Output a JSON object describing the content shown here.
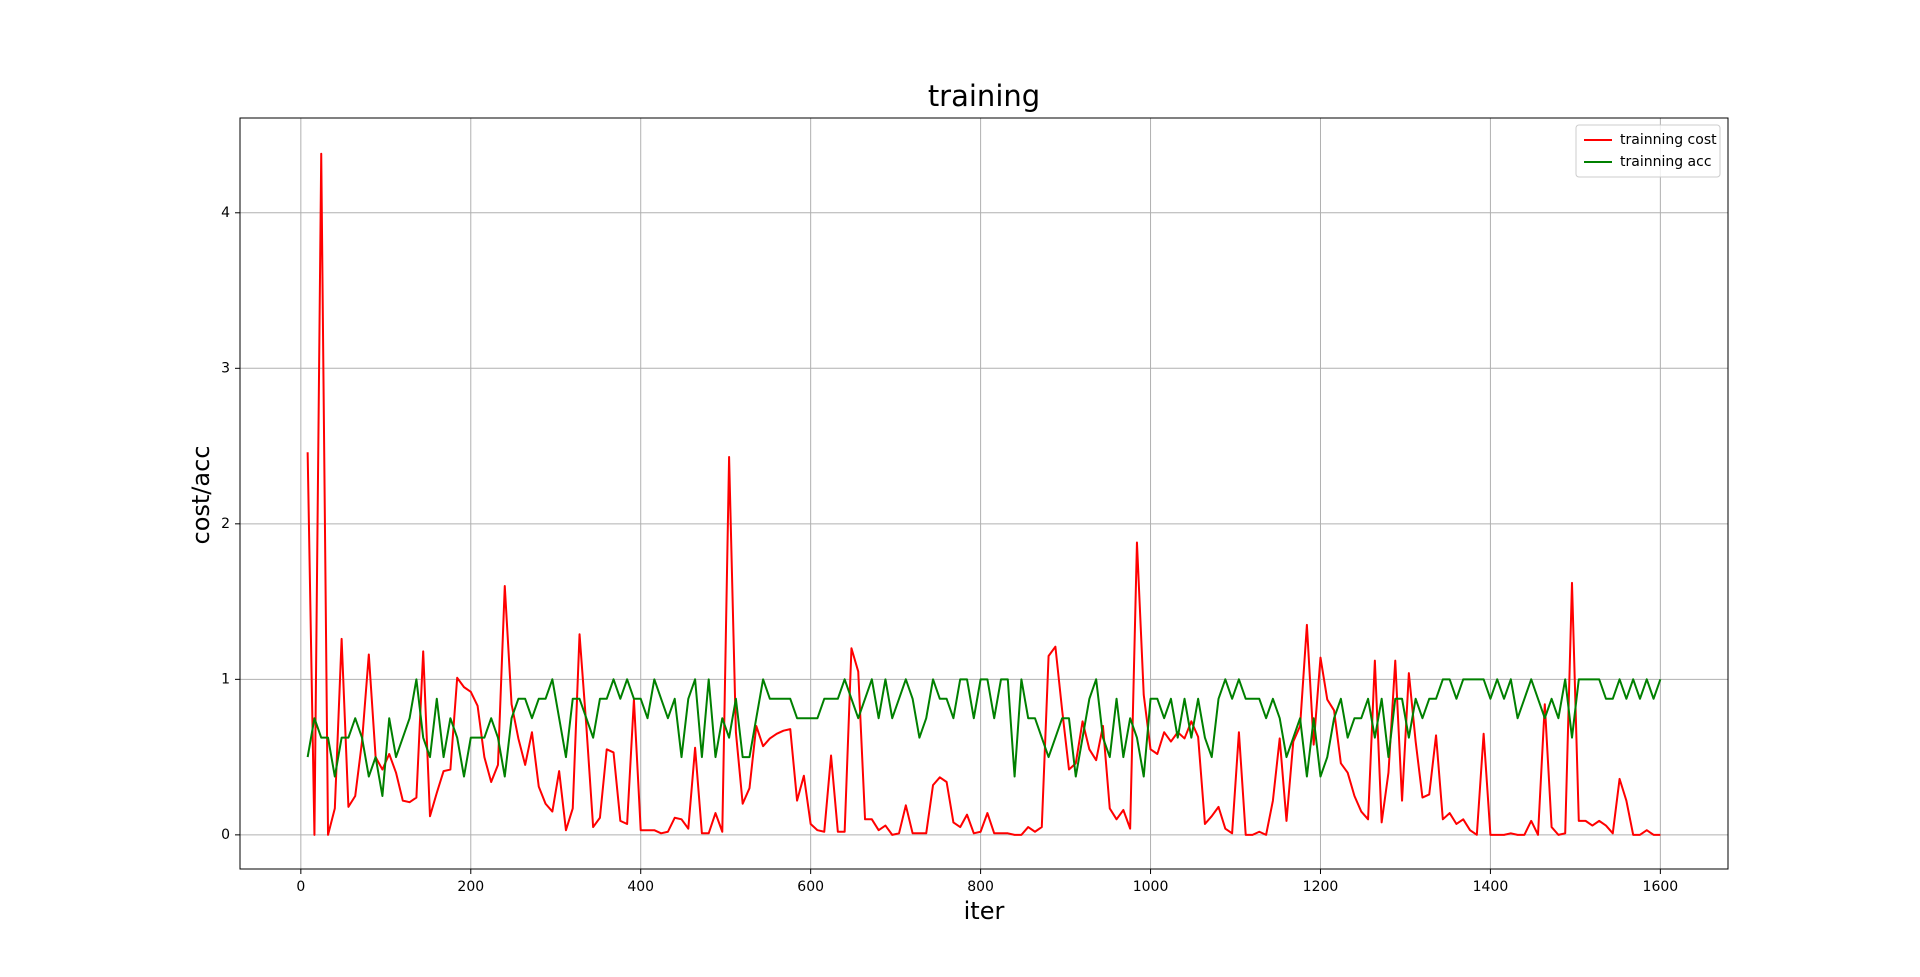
{
  "chart_data": {
    "type": "line",
    "title": "training",
    "x_label": "iter",
    "y_label": "cost/acc",
    "x": [
      8,
      16,
      24,
      32,
      40,
      48,
      56,
      64,
      72,
      80,
      88,
      96,
      104,
      112,
      120,
      128,
      136,
      144,
      152,
      160,
      168,
      176,
      184,
      192,
      200,
      208,
      216,
      224,
      232,
      240,
      248,
      256,
      264,
      272,
      280,
      288,
      296,
      304,
      312,
      320,
      328,
      336,
      344,
      352,
      360,
      368,
      376,
      384,
      392,
      400,
      408,
      416,
      424,
      432,
      440,
      448,
      456,
      464,
      472,
      480,
      488,
      496,
      504,
      512,
      520,
      528,
      536,
      544,
      552,
      560,
      568,
      576,
      584,
      592,
      600,
      608,
      616,
      624,
      632,
      640,
      648,
      656,
      664,
      672,
      680,
      688,
      696,
      704,
      712,
      720,
      728,
      736,
      744,
      752,
      760,
      768,
      776,
      784,
      792,
      800,
      808,
      816,
      824,
      832,
      840,
      848,
      856,
      864,
      872,
      880,
      888,
      896,
      904,
      912,
      920,
      928,
      936,
      944,
      952,
      960,
      968,
      976,
      984,
      992,
      1000,
      1008,
      1016,
      1024,
      1032,
      1040,
      1048,
      1056,
      1064,
      1072,
      1080,
      1088,
      1096,
      1104,
      1112,
      1120,
      1128,
      1136,
      1144,
      1152,
      1160,
      1168,
      1176,
      1184,
      1192,
      1200,
      1208,
      1216,
      1224,
      1232,
      1240,
      1248,
      1256,
      1264,
      1272,
      1280,
      1288,
      1296,
      1304,
      1312,
      1320,
      1328,
      1336,
      1344,
      1352,
      1360,
      1368,
      1376,
      1384,
      1392,
      1400,
      1408,
      1416,
      1424,
      1432,
      1440,
      1448,
      1456,
      1464,
      1472,
      1480,
      1488,
      1496,
      1504,
      1512,
      1520,
      1528,
      1536,
      1544,
      1552,
      1560,
      1568,
      1576,
      1584,
      1592,
      1600
    ],
    "series": [
      {
        "name": "trainning cost",
        "color": "#ff0000",
        "values": [
          2.46,
          0,
          4.38,
          0,
          0.17,
          1.26,
          0.18,
          0.25,
          0.6,
          1.16,
          0.5,
          0.42,
          0.52,
          0.4,
          0.22,
          0.21,
          0.24,
          1.18,
          0.12,
          0.27,
          0.41,
          0.42,
          1.01,
          0.95,
          0.92,
          0.83,
          0.5,
          0.34,
          0.45,
          1.6,
          0.84,
          0.62,
          0.45,
          0.66,
          0.31,
          0.2,
          0.15,
          0.41,
          0.03,
          0.17,
          1.29,
          0.7,
          0.05,
          0.11,
          0.55,
          0.53,
          0.09,
          0.07,
          0.87,
          0.03,
          0.03,
          0.03,
          0.01,
          0.02,
          0.11,
          0.1,
          0.04,
          0.56,
          0.01,
          0.01,
          0.14,
          0.02,
          2.43,
          0.66,
          0.2,
          0.3,
          0.7,
          0.57,
          0.62,
          0.65,
          0.67,
          0.68,
          0.22,
          0.38,
          0.07,
          0.03,
          0.02,
          0.51,
          0.02,
          0.02,
          1.2,
          1.05,
          0.1,
          0.1,
          0.03,
          0.06,
          0,
          0.01,
          0.19,
          0.01,
          0.01,
          0.01,
          0.32,
          0.37,
          0.34,
          0.08,
          0.05,
          0.13,
          0.01,
          0.02,
          0.14,
          0.01,
          0.01,
          0.01,
          0,
          0,
          0.05,
          0.02,
          0.05,
          1.15,
          1.21,
          0.8,
          0.42,
          0.46,
          0.73,
          0.55,
          0.48,
          0.7,
          0.17,
          0.1,
          0.16,
          0.04,
          1.88,
          0.9,
          0.55,
          0.52,
          0.66,
          0.6,
          0.66,
          0.62,
          0.73,
          0.63,
          0.07,
          0.12,
          0.18,
          0.04,
          0.01,
          0.66,
          0,
          0,
          0.02,
          0,
          0.22,
          0.62,
          0.09,
          0.6,
          0.7,
          1.35,
          0.58,
          1.14,
          0.87,
          0.8,
          0.46,
          0.4,
          0.25,
          0.15,
          0.1,
          1.12,
          0.08,
          0.4,
          1.12,
          0.22,
          1.04,
          0.6,
          0.24,
          0.26,
          0.64,
          0.1,
          0.14,
          0.07,
          0.1,
          0.03,
          0,
          0.65,
          0,
          0,
          0,
          0.01,
          0,
          0,
          0.09,
          0,
          0.84,
          0.05,
          0,
          0.01,
          1.62,
          0.09,
          0.09,
          0.06,
          0.09,
          0.06,
          0.01,
          0.36,
          0.22,
          0,
          0,
          0.03,
          0,
          0
        ]
      },
      {
        "name": "trainning acc",
        "color": "#008000",
        "values": [
          0.5,
          0.75,
          0.625,
          0.625,
          0.375,
          0.625,
          0.625,
          0.75,
          0.625,
          0.375,
          0.5,
          0.25,
          0.75,
          0.5,
          0.625,
          0.75,
          1,
          0.625,
          0.5,
          0.875,
          0.5,
          0.75,
          0.625,
          0.375,
          0.625,
          0.625,
          0.625,
          0.75,
          0.625,
          0.375,
          0.75,
          0.875,
          0.875,
          0.75,
          0.875,
          0.875,
          1,
          0.75,
          0.5,
          0.875,
          0.875,
          0.75,
          0.625,
          0.875,
          0.875,
          1,
          0.875,
          1,
          0.875,
          0.875,
          0.75,
          1,
          0.875,
          0.75,
          0.875,
          0.5,
          0.875,
          1,
          0.5,
          1,
          0.5,
          0.75,
          0.625,
          0.875,
          0.5,
          0.5,
          0.75,
          1,
          0.875,
          0.875,
          0.875,
          0.875,
          0.75,
          0.75,
          0.75,
          0.75,
          0.875,
          0.875,
          0.875,
          1,
          0.875,
          0.75,
          0.875,
          1,
          0.75,
          1,
          0.75,
          0.875,
          1,
          0.875,
          0.625,
          0.75,
          1,
          0.875,
          0.875,
          0.75,
          1,
          1,
          0.75,
          1,
          1,
          0.75,
          1,
          1,
          0.375,
          1,
          0.75,
          0.75,
          0.625,
          0.5,
          0.625,
          0.75,
          0.75,
          0.375,
          0.625,
          0.875,
          1,
          0.625,
          0.5,
          0.875,
          0.5,
          0.75,
          0.625,
          0.375,
          0.875,
          0.875,
          0.75,
          0.875,
          0.625,
          0.875,
          0.625,
          0.875,
          0.625,
          0.5,
          0.875,
          1,
          0.875,
          1,
          0.875,
          0.875,
          0.875,
          0.75,
          0.875,
          0.75,
          0.5,
          0.625,
          0.75,
          0.375,
          0.75,
          0.375,
          0.5,
          0.75,
          0.875,
          0.625,
          0.75,
          0.75,
          0.875,
          0.625,
          0.875,
          0.5,
          0.875,
          0.875,
          0.625,
          0.875,
          0.75,
          0.875,
          0.875,
          1,
          1,
          0.875,
          1,
          1,
          1,
          1,
          0.875,
          1,
          0.875,
          1,
          0.75,
          0.875,
          1,
          0.875,
          0.75,
          0.875,
          0.75,
          1,
          0.625,
          1,
          1,
          1,
          1,
          0.875,
          0.875,
          1,
          0.875,
          1,
          0.875,
          1,
          0.875,
          1
        ]
      }
    ],
    "xlim": [
      -71.6,
      1679.6
    ],
    "xticks": [
      0,
      200,
      400,
      600,
      800,
      1000,
      1200,
      1400,
      1600
    ],
    "ylim": [
      -0.2195,
      4.6095
    ],
    "yticks": [
      0,
      1,
      2,
      3,
      4
    ],
    "grid": true,
    "legend": "upper right"
  }
}
